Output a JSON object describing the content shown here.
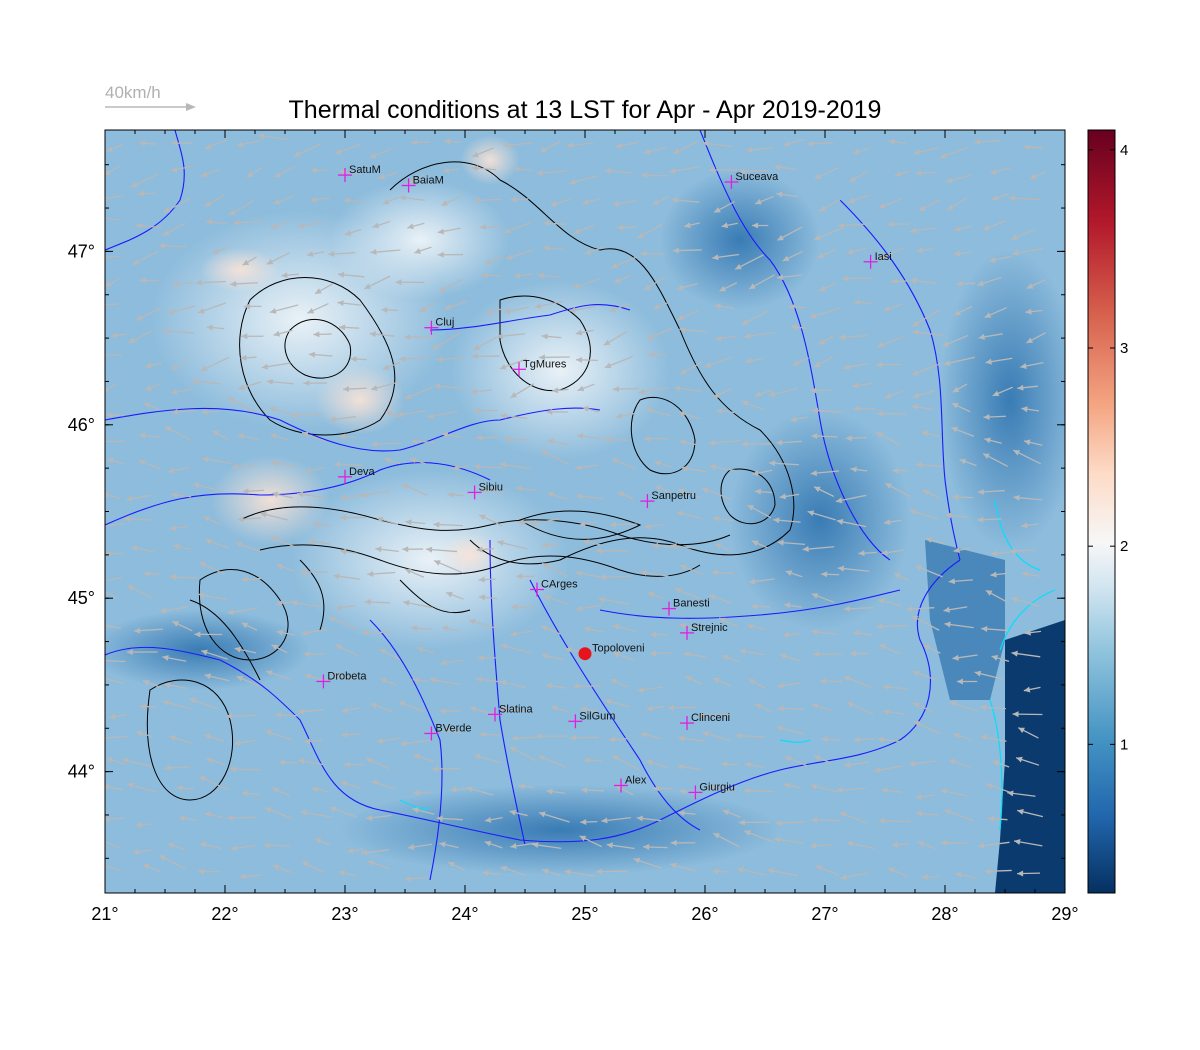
{
  "title": "Thermal conditions at 13 LST for Apr - Apr  2019-2019",
  "wind_scale_label": "40km/h",
  "map": {
    "lon_range": [
      21,
      29
    ],
    "lat_range": [
      43.3,
      47.7
    ],
    "lon_ticks": [
      "21°",
      "22°",
      "23°",
      "24°",
      "25°",
      "26°",
      "27°",
      "28°",
      "29°"
    ],
    "lat_ticks": [
      "44°",
      "45°",
      "46°",
      "47°"
    ],
    "highlight_site": {
      "name": "Topoloveni",
      "lon": 25.0,
      "lat": 44.68,
      "color": "#e8141c"
    },
    "cities": [
      {
        "name": "SatuM",
        "lon": 23.0,
        "lat": 47.44
      },
      {
        "name": "BaiaM",
        "lon": 23.53,
        "lat": 47.38
      },
      {
        "name": "Suceava",
        "lon": 26.22,
        "lat": 47.4
      },
      {
        "name": "Iasi",
        "lon": 27.38,
        "lat": 46.94
      },
      {
        "name": "Cluj",
        "lon": 23.72,
        "lat": 46.56
      },
      {
        "name": "TgMures",
        "lon": 24.45,
        "lat": 46.32
      },
      {
        "name": "Deva",
        "lon": 23.0,
        "lat": 45.7
      },
      {
        "name": "Sibiu",
        "lon": 24.08,
        "lat": 45.61
      },
      {
        "name": "Sanpetru",
        "lon": 25.52,
        "lat": 45.56
      },
      {
        "name": "CArges",
        "lon": 24.6,
        "lat": 45.05
      },
      {
        "name": "Banesti",
        "lon": 25.7,
        "lat": 44.94
      },
      {
        "name": "Strejnic",
        "lon": 25.85,
        "lat": 44.8
      },
      {
        "name": "Drobeta",
        "lon": 22.82,
        "lat": 44.52
      },
      {
        "name": "Slatina",
        "lon": 24.25,
        "lat": 44.33
      },
      {
        "name": "SilGum",
        "lon": 24.92,
        "lat": 44.29
      },
      {
        "name": "Clinceni",
        "lon": 25.85,
        "lat": 44.28
      },
      {
        "name": "BVerde",
        "lon": 23.72,
        "lat": 44.22
      },
      {
        "name": "Alex",
        "lon": 25.3,
        "lat": 43.92
      },
      {
        "name": "Giurgiu",
        "lon": 25.92,
        "lat": 43.88
      }
    ]
  },
  "colorbar": {
    "range": [
      0.25,
      4.1
    ],
    "tick_values": [
      1,
      2,
      3,
      4
    ],
    "tick_labels": [
      "1",
      "2",
      "3",
      "4"
    ],
    "colors": [
      "#053061",
      "#2166ac",
      "#4393c3",
      "#92c5de",
      "#d1e5f0",
      "#f7f7f7",
      "#fddbc7",
      "#f4a582",
      "#d6604d",
      "#b2182b",
      "#67001f"
    ]
  },
  "colors": {
    "city_marker": "#e020e0",
    "rivers": "#1a1aff",
    "contours": "#000000",
    "wind_arrows": "#b8b8b8",
    "coast": "#00e0ff"
  }
}
